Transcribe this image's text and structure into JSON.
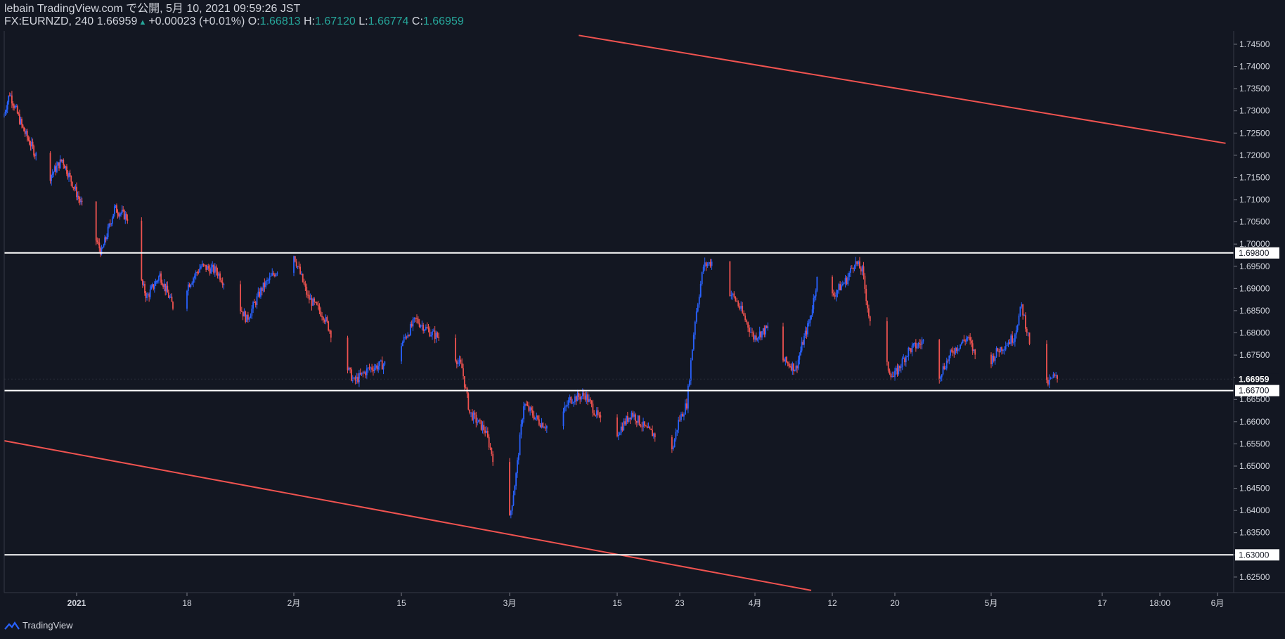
{
  "header": {
    "publisher": "lebain TradingView.com で公開, 5月 10, 2021 09:59:26 JST",
    "symbol": "FX:EURNZD, 240",
    "last": "1.66959",
    "change": "+0.00023 (+0.01%)",
    "o_label": "O:",
    "o_value": "1.66813",
    "h_label": "H:",
    "h_value": "1.67120",
    "l_label": "L:",
    "l_value": "1.66774",
    "c_label": "C:",
    "c_value": "1.66959"
  },
  "footer": {
    "brand": "TradingView"
  },
  "colors": {
    "background": "#131722",
    "up": "#2962ff",
    "down": "#ef5350",
    "trendline": "#f05350",
    "level": "#ffffff",
    "text": "#d1d4dc",
    "teal": "#26a69a"
  },
  "chart_data": {
    "type": "candlestick",
    "symbol": "FX:EURNZD",
    "interval": "240",
    "ylim": [
      1.6215,
      1.748
    ],
    "y_ticks": [
      1.625,
      1.63,
      1.635,
      1.64,
      1.645,
      1.65,
      1.655,
      1.66,
      1.665,
      1.67,
      1.675,
      1.68,
      1.685,
      1.69,
      1.695,
      1.7,
      1.705,
      1.71,
      1.715,
      1.72,
      1.725,
      1.73,
      1.735,
      1.74,
      1.745
    ],
    "x_ticks": [
      {
        "label": "2021",
        "date": "2021-01-01",
        "bold": true
      },
      {
        "label": "18",
        "date": "2021-01-18",
        "bold": false
      },
      {
        "label": "2月",
        "date": "2021-02-01",
        "bold": false
      },
      {
        "label": "15",
        "date": "2021-02-15",
        "bold": false
      },
      {
        "label": "3月",
        "date": "2021-03-01",
        "bold": false
      },
      {
        "label": "15",
        "date": "2021-03-15",
        "bold": false
      },
      {
        "label": "23",
        "date": "2021-03-23",
        "bold": false
      },
      {
        "label": "4月",
        "date": "2021-04-01",
        "bold": false
      },
      {
        "label": "12",
        "date": "2021-04-12",
        "bold": false
      },
      {
        "label": "20",
        "date": "2021-04-20",
        "bold": false
      },
      {
        "label": "5月",
        "date": "2021-05-03",
        "bold": false
      },
      {
        "label": "17",
        "date": "2021-05-17",
        "bold": false
      },
      {
        "label": "18:00",
        "date": "2021-05-24",
        "bold": false
      },
      {
        "label": "6月",
        "date": "2021-06-01",
        "bold": false
      }
    ],
    "horizontal_levels": [
      {
        "value": 1.698,
        "label": "1.69800"
      },
      {
        "value": 1.667,
        "label": "1.66700"
      },
      {
        "value": 1.63,
        "label": "1.63000"
      }
    ],
    "last_price": {
      "value": 1.66959,
      "label": "1.66959"
    },
    "trendlines": [
      {
        "from": {
          "date": "2021-03-10",
          "price": 1.747
        },
        "to": {
          "date": "2021-06-03",
          "price": 1.7227
        }
      },
      {
        "from": {
          "date": "2020-12-21",
          "price": 1.6557
        },
        "to": {
          "date": "2021-04-09",
          "price": 1.622
        }
      }
    ],
    "close_path": [
      {
        "date": "2020-12-21",
        "close": 1.7285
      },
      {
        "date": "2020-12-22",
        "close": 1.734
      },
      {
        "date": "2020-12-24",
        "close": 1.726
      },
      {
        "date": "2020-12-26",
        "close": 1.72
      },
      {
        "date": "2020-12-28",
        "close": 1.715
      },
      {
        "date": "2020-12-30",
        "close": 1.719
      },
      {
        "date": "2021-01-01",
        "close": 1.712
      },
      {
        "date": "2021-01-03",
        "close": 1.705
      },
      {
        "date": "2021-01-05",
        "close": 1.698
      },
      {
        "date": "2021-01-07",
        "close": 1.708
      },
      {
        "date": "2021-01-09",
        "close": 1.706
      },
      {
        "date": "2021-01-10",
        "close": 1.696
      },
      {
        "date": "2021-01-12",
        "close": 1.688
      },
      {
        "date": "2021-01-14",
        "close": 1.693
      },
      {
        "date": "2021-01-16",
        "close": 1.686
      },
      {
        "date": "2021-01-18",
        "close": 1.69
      },
      {
        "date": "2021-01-20",
        "close": 1.695
      },
      {
        "date": "2021-01-22",
        "close": 1.694
      },
      {
        "date": "2021-01-24",
        "close": 1.689
      },
      {
        "date": "2021-01-26",
        "close": 1.683
      },
      {
        "date": "2021-01-28",
        "close": 1.69
      },
      {
        "date": "2021-02-01",
        "close": 1.6985
      },
      {
        "date": "2021-02-03",
        "close": 1.688
      },
      {
        "date": "2021-02-05",
        "close": 1.684
      },
      {
        "date": "2021-02-07",
        "close": 1.676
      },
      {
        "date": "2021-02-09",
        "close": 1.669
      },
      {
        "date": "2021-02-11",
        "close": 1.672
      },
      {
        "date": "2021-02-13",
        "close": 1.673
      },
      {
        "date": "2021-02-15",
        "close": 1.677
      },
      {
        "date": "2021-02-17",
        "close": 1.683
      },
      {
        "date": "2021-02-19",
        "close": 1.68
      },
      {
        "date": "2021-02-21",
        "close": 1.678
      },
      {
        "date": "2021-02-23",
        "close": 1.672
      },
      {
        "date": "2021-02-24",
        "close": 1.662
      },
      {
        "date": "2021-02-26",
        "close": 1.658
      },
      {
        "date": "2021-02-28",
        "close": 1.646
      },
      {
        "date": "2021-03-01",
        "close": 1.636
      },
      {
        "date": "2021-03-02",
        "close": 1.648
      },
      {
        "date": "2021-03-03",
        "close": 1.664
      },
      {
        "date": "2021-03-05",
        "close": 1.66
      },
      {
        "date": "2021-03-07",
        "close": 1.658
      },
      {
        "date": "2021-03-09",
        "close": 1.665
      },
      {
        "date": "2021-03-11",
        "close": 1.666
      },
      {
        "date": "2021-03-13",
        "close": 1.66
      },
      {
        "date": "2021-03-15",
        "close": 1.657
      },
      {
        "date": "2021-03-17",
        "close": 1.662
      },
      {
        "date": "2021-03-19",
        "close": 1.658
      },
      {
        "date": "2021-03-21",
        "close": 1.656
      },
      {
        "date": "2021-03-22",
        "close": 1.652
      },
      {
        "date": "2021-03-23",
        "close": 1.66
      },
      {
        "date": "2021-03-24",
        "close": 1.664
      },
      {
        "date": "2021-03-25",
        "close": 1.683
      },
      {
        "date": "2021-03-26",
        "close": 1.695
      },
      {
        "date": "2021-03-27",
        "close": 1.696
      },
      {
        "date": "2021-03-28",
        "close": 1.692
      },
      {
        "date": "2021-03-30",
        "close": 1.687
      },
      {
        "date": "2021-04-01",
        "close": 1.679
      },
      {
        "date": "2021-04-03",
        "close": 1.681
      },
      {
        "date": "2021-04-05",
        "close": 1.674
      },
      {
        "date": "2021-04-07",
        "close": 1.672
      },
      {
        "date": "2021-04-08",
        "close": 1.678
      },
      {
        "date": "2021-04-09",
        "close": 1.683
      },
      {
        "date": "2021-04-10",
        "close": 1.692
      },
      {
        "date": "2021-04-12",
        "close": 1.688
      },
      {
        "date": "2021-04-14",
        "close": 1.692
      },
      {
        "date": "2021-04-15",
        "close": 1.696
      },
      {
        "date": "2021-04-16",
        "close": 1.694
      },
      {
        "date": "2021-04-17",
        "close": 1.682
      },
      {
        "date": "2021-04-18",
        "close": 1.676
      },
      {
        "date": "2021-04-20",
        "close": 1.67
      },
      {
        "date": "2021-04-22",
        "close": 1.676
      },
      {
        "date": "2021-04-24",
        "close": 1.678
      },
      {
        "date": "2021-04-26",
        "close": 1.67
      },
      {
        "date": "2021-04-28",
        "close": 1.676
      },
      {
        "date": "2021-04-30",
        "close": 1.679
      },
      {
        "date": "2021-05-02",
        "close": 1.671
      },
      {
        "date": "2021-05-04",
        "close": 1.676
      },
      {
        "date": "2021-05-06",
        "close": 1.679
      },
      {
        "date": "2021-05-07",
        "close": 1.686
      },
      {
        "date": "2021-05-08",
        "close": 1.678
      },
      {
        "date": "2021-05-09",
        "close": 1.664
      },
      {
        "date": "2021-05-10",
        "close": 1.668
      },
      {
        "date": "2021-05-11",
        "close": 1.67
      },
      {
        "date": "2021-05-11T12:00",
        "close": 1.66959
      }
    ]
  }
}
